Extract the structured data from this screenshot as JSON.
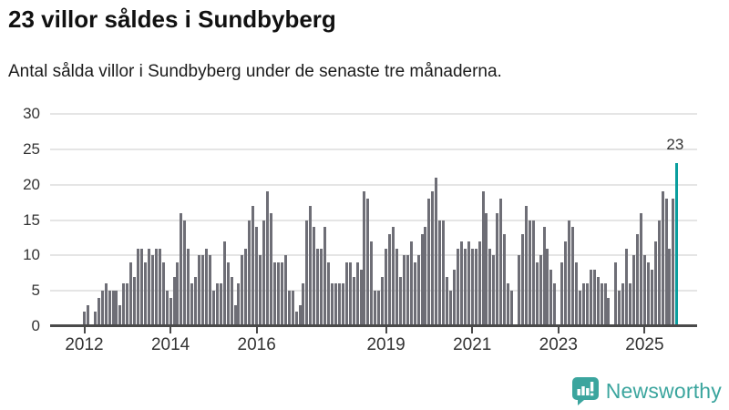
{
  "header": {
    "title": "23 villor såldes i Sundbyberg",
    "subtitle": "Antal sålda villor i Sundbyberg under de senaste tre månaderna."
  },
  "chart_data": {
    "type": "bar",
    "title": "23 villor såldes i Sundbyberg",
    "subtitle": "Antal sålda villor i Sundbyberg under de senaste tre månaderna.",
    "x_start_month": "2012-01",
    "x_end_month": "2025-10",
    "values": [
      2,
      3,
      0,
      2,
      4,
      5,
      6,
      5,
      5,
      5,
      3,
      6,
      6,
      9,
      7,
      11,
      11,
      9,
      11,
      10,
      11,
      11,
      9,
      5,
      4,
      7,
      9,
      16,
      15,
      11,
      6,
      7,
      10,
      10,
      11,
      10,
      5,
      6,
      6,
      12,
      9,
      7,
      3,
      6,
      10,
      11,
      15,
      17,
      14,
      10,
      15,
      19,
      16,
      9,
      9,
      9,
      10,
      5,
      5,
      2,
      3,
      6,
      15,
      17,
      14,
      11,
      11,
      14,
      9,
      6,
      6,
      6,
      6,
      9,
      9,
      7,
      9,
      8,
      19,
      18,
      12,
      5,
      5,
      7,
      11,
      13,
      14,
      11,
      7,
      10,
      10,
      12,
      9,
      10,
      13,
      14,
      18,
      19,
      21,
      15,
      15,
      7,
      5,
      8,
      11,
      12,
      11,
      12,
      11,
      11,
      12,
      19,
      16,
      11,
      10,
      16,
      18,
      13,
      6,
      5,
      0,
      10,
      13,
      17,
      15,
      15,
      9,
      10,
      14,
      11,
      8,
      6,
      0,
      9,
      12,
      15,
      14,
      9,
      5,
      6,
      6,
      8,
      8,
      7,
      6,
      6,
      4,
      0,
      9,
      5,
      6,
      11,
      6,
      10,
      13,
      16,
      10,
      9,
      8,
      12,
      15,
      19,
      18,
      11,
      18,
      23
    ],
    "highlight_index": 165,
    "highlight_value": 23,
    "annotation_label": "23",
    "ylim": [
      0,
      30
    ],
    "y_ticks": [
      0,
      5,
      10,
      15,
      20,
      25,
      30
    ],
    "x_tick_labels": [
      "2012",
      "2014",
      "2016",
      "2019",
      "2021",
      "2023",
      "2025"
    ],
    "grid": true,
    "legend": "none",
    "colors": {
      "bar": "#6e6e76",
      "highlight": "#0a9e9e",
      "grid": "#e5e5e5",
      "axis": "#4a4a4a",
      "text": "#333333"
    }
  },
  "logo": {
    "text": "Newsworthy",
    "color": "#3ba59e",
    "icon": "bar-chart-speech-bubble"
  }
}
